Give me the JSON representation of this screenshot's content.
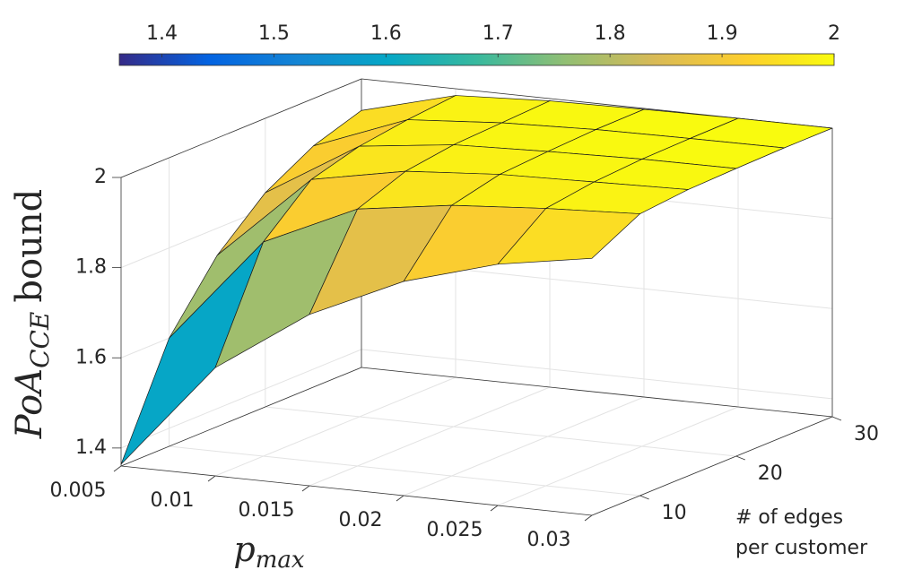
{
  "chart_data": {
    "type": "surface",
    "x": [
      0.005,
      0.01,
      0.015,
      0.02,
      0.025,
      0.03
    ],
    "y": [
      5,
      10,
      15,
      20,
      25,
      30
    ],
    "z": [
      [
        1.364,
        1.6,
        1.74,
        1.835,
        1.895,
        1.93
      ],
      [
        1.6,
        1.835,
        1.93,
        1.96,
        1.975,
        1.985
      ],
      [
        1.74,
        1.93,
        1.97,
        1.985,
        1.99,
        1.995
      ],
      [
        1.835,
        1.96,
        1.985,
        1.992,
        1.997,
        1.998
      ],
      [
        1.895,
        1.975,
        1.99,
        1.997,
        1.999,
        2.0
      ],
      [
        1.93,
        1.985,
        1.995,
        1.998,
        2.0,
        2.0
      ]
    ],
    "xlim": [
      0.005,
      0.03
    ],
    "xticks": [
      0.005,
      0.01,
      0.015,
      0.02,
      0.025,
      0.03
    ],
    "ylim": [
      5,
      30
    ],
    "yticks": [
      10,
      20,
      30
    ],
    "zlim": [
      1.36,
      2
    ],
    "zticks": [
      1.4,
      1.6,
      1.8,
      2
    ],
    "clim": [
      1.362,
      2
    ],
    "cticks": [
      1.4,
      1.5,
      1.6,
      1.7,
      1.8,
      1.9,
      2
    ],
    "colormap": [
      "#352a87",
      "#0363e1",
      "#1485d4",
      "#06a7c6",
      "#38b99e",
      "#92bf73",
      "#d9ba56",
      "#fcce2e",
      "#f9fb0e"
    ],
    "grid": true,
    "xlabel": {
      "base": "p",
      "sub": "max"
    },
    "ylabel": [
      "# of edges",
      "per customer"
    ],
    "zlabel": {
      "base": "PoA",
      "sub": "CCE",
      "rest": "bound"
    }
  }
}
